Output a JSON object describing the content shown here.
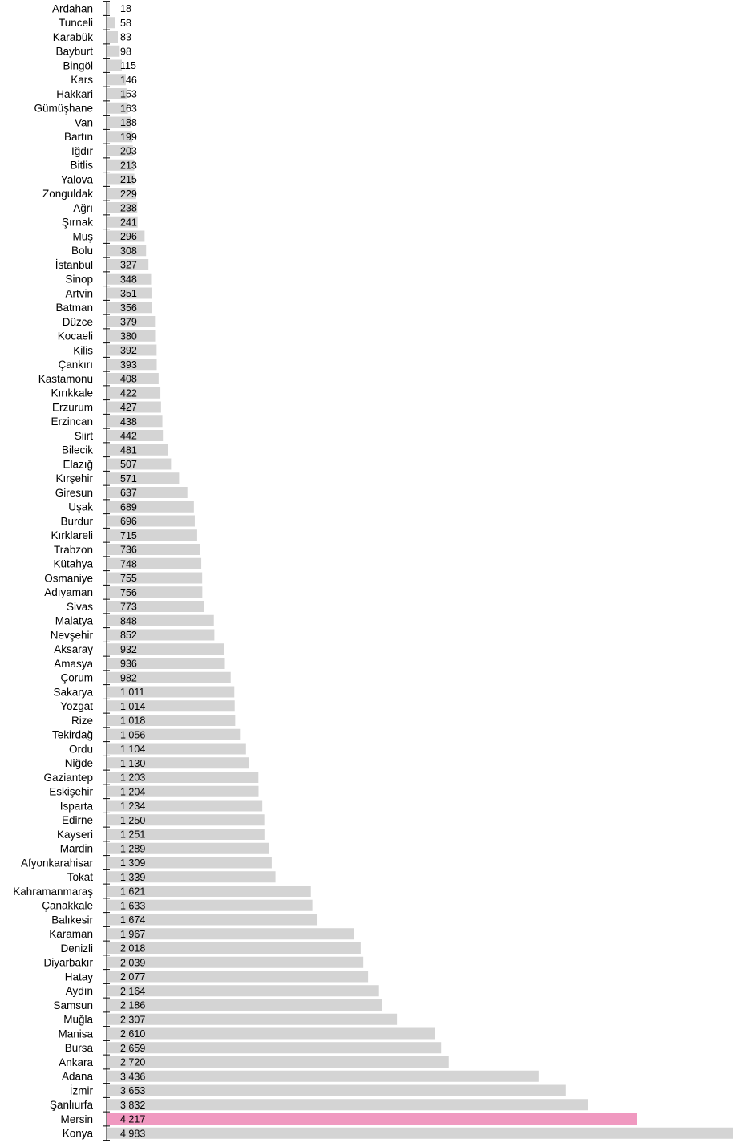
{
  "chart_data": {
    "type": "bar",
    "orientation": "horizontal",
    "title": "",
    "xlabel": "",
    "ylabel": "",
    "xlim": [
      0,
      4983
    ],
    "grid": false,
    "legend": "none",
    "colors": {
      "default": "#d4d4d4",
      "highlight": "#f099c0"
    },
    "highlight": "Mersin",
    "categories": [
      "Ardahan",
      "Tunceli",
      "Karabük",
      "Bayburt",
      "Bingöl",
      "Kars",
      "Hakkari",
      "Gümüşhane",
      "Van",
      "Bartın",
      "Iğdır",
      "Bitlis",
      "Yalova",
      "Zonguldak",
      "Ağrı",
      "Şırnak",
      "Muş",
      "Bolu",
      "İstanbul",
      "Sinop",
      "Artvin",
      "Batman",
      "Düzce",
      "Kocaeli",
      "Kilis",
      "Çankırı",
      "Kastamonu",
      "Kırıkkale",
      "Erzurum",
      "Erzincan",
      "Siirt",
      "Bilecik",
      "Elazığ",
      "Kırşehir",
      "Giresun",
      "Uşak",
      "Burdur",
      "Kırklareli",
      "Trabzon",
      "Kütahya",
      "Osmaniye",
      "Adıyaman",
      "Sivas",
      "Malatya",
      "Nevşehir",
      "Aksaray",
      "Amasya",
      "Çorum",
      "Sakarya",
      "Yozgat",
      "Rize",
      "Tekirdağ",
      "Ordu",
      "Niğde",
      "Gaziantep",
      "Eskişehir",
      "Isparta",
      "Edirne",
      "Kayseri",
      "Mardin",
      "Afyonkarahisar",
      "Tokat",
      "Kahramanmaraş",
      "Çanakkale",
      "Balıkesir",
      "Karaman",
      "Denizli",
      "Diyarbakır",
      "Hatay",
      "Aydın",
      "Samsun",
      "Muğla",
      "Manisa",
      "Bursa",
      "Ankara",
      "Adana",
      "İzmir",
      "Şanlıurfa",
      "Mersin",
      "Konya"
    ],
    "values": [
      18,
      58,
      83,
      98,
      115,
      146,
      153,
      163,
      188,
      199,
      203,
      213,
      215,
      229,
      238,
      241,
      296,
      308,
      327,
      348,
      351,
      356,
      379,
      380,
      392,
      393,
      408,
      422,
      427,
      438,
      442,
      481,
      507,
      571,
      637,
      689,
      696,
      715,
      736,
      748,
      755,
      756,
      773,
      848,
      852,
      932,
      936,
      982,
      1011,
      1014,
      1018,
      1056,
      1104,
      1130,
      1203,
      1204,
      1234,
      1250,
      1251,
      1289,
      1309,
      1339,
      1621,
      1633,
      1674,
      1967,
      2018,
      2039,
      2077,
      2164,
      2186,
      2307,
      2610,
      2659,
      2720,
      3436,
      3653,
      3832,
      4217,
      4983
    ],
    "value_labels": [
      "18",
      "58",
      "83",
      "98",
      "115",
      "146",
      "153",
      "163",
      "188",
      "199",
      "203",
      "213",
      "215",
      "229",
      "238",
      "241",
      "296",
      "308",
      "327",
      "348",
      "351",
      "356",
      "379",
      "380",
      "392",
      "393",
      "408",
      "422",
      "427",
      "438",
      "442",
      "481",
      "507",
      "571",
      "637",
      "689",
      "696",
      "715",
      "736",
      "748",
      "755",
      "756",
      "773",
      "848",
      "852",
      "932",
      "936",
      "982",
      "1 011",
      "1 014",
      "1 018",
      "1 056",
      "1 104",
      "1 130",
      "1 203",
      "1 204",
      "1 234",
      "1 250",
      "1 251",
      "1 289",
      "1 309",
      "1 339",
      "1 621",
      "1 633",
      "1 674",
      "1 967",
      "2 018",
      "2 039",
      "2 077",
      "2 164",
      "2 186",
      "2 307",
      "2 610",
      "2 659",
      "2 720",
      "3 436",
      "3 653",
      "3 832",
      "4 217",
      "4 983"
    ]
  }
}
